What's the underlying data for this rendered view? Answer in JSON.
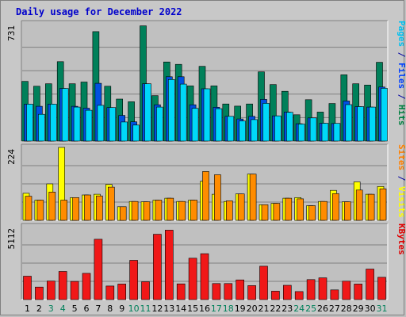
{
  "window": {
    "title": "Daily usage for December 2022"
  },
  "chart_data": [
    {
      "type": "bar",
      "panel": "pages-files-hits",
      "ymax_label": "731",
      "ylim": [
        0,
        731
      ],
      "legend": [
        {
          "text": "Pages",
          "color": "#00c0f0"
        },
        {
          "text": " / ",
          "color": "#0000a0"
        },
        {
          "text": "Files",
          "color": "#0040ff"
        },
        {
          "text": " / ",
          "color": "#0000a0"
        },
        {
          "text": "Hits",
          "color": "#008040"
        }
      ],
      "series": [
        {
          "name": "Hits",
          "color": "#00805a",
          "values": [
            372,
            342,
            357,
            495,
            357,
            368,
            682,
            342,
            262,
            245,
            718,
            283,
            493,
            478,
            344,
            466,
            344,
            231,
            218,
            231,
            431,
            352,
            310,
            164,
            258,
            181,
            234,
            413,
            357,
            349,
            491
          ]
        },
        {
          "name": "Files",
          "color": "#0050e0",
          "values": [
            230,
            217,
            230,
            328,
            217,
            205,
            360,
            209,
            160,
            120,
            357,
            226,
            401,
            401,
            226,
            326,
            211,
            154,
            138,
            154,
            260,
            157,
            181,
            108,
            144,
            111,
            109,
            250,
            215,
            212,
            337
          ]
        },
        {
          "name": "Pages",
          "color": "#00d8f8",
          "values": [
            230,
            167,
            230,
            328,
            212,
            192,
            223,
            209,
            119,
            100,
            357,
            212,
            384,
            355,
            204,
            326,
            202,
            154,
            125,
            134,
            235,
            157,
            180,
            106,
            144,
            111,
            110,
            227,
            215,
            212,
            329
          ]
        }
      ],
      "grid": true
    },
    {
      "type": "bar",
      "panel": "sites-visits",
      "ymax_label": "224",
      "ylim": [
        0,
        224
      ],
      "legend": [
        {
          "text": "Sites",
          "color": "#ff8000"
        },
        {
          "text": " / ",
          "color": "#0000a0"
        },
        {
          "text": "Visits",
          "color": "#ffff00"
        }
      ],
      "series": [
        {
          "name": "Visits",
          "color": "#ffff00",
          "values": [
            83,
            62,
            112,
            224,
            70,
            78,
            80,
            110,
            42,
            58,
            57,
            62,
            68,
            58,
            62,
            120,
            80,
            58,
            81,
            142,
            48,
            52,
            68,
            70,
            45,
            58,
            92,
            57,
            118,
            80,
            104
          ]
        },
        {
          "name": "Sites",
          "color": "#ff8c00",
          "values": [
            74,
            62,
            87,
            62,
            70,
            78,
            75,
            102,
            42,
            58,
            57,
            62,
            68,
            58,
            62,
            150,
            140,
            60,
            81,
            142,
            48,
            52,
            68,
            66,
            45,
            58,
            82,
            57,
            93,
            80,
            97
          ]
        }
      ],
      "grid": true
    },
    {
      "type": "bar",
      "panel": "kbytes",
      "ymax_label": "5112",
      "ylim": [
        0,
        5112
      ],
      "legend": [
        {
          "text": "KBytes",
          "color": "#e00000"
        }
      ],
      "series": [
        {
          "name": "KBytes",
          "color": "#f01818",
          "values": [
            1640,
            880,
            1300,
            1970,
            1270,
            1840,
            4230,
            950,
            1090,
            2750,
            1250,
            4580,
            4870,
            1100,
            2900,
            3220,
            1120,
            1120,
            1380,
            980,
            2340,
            590,
            1000,
            560,
            1400,
            1520,
            680,
            1290,
            1090,
            2140,
            1560
          ]
        }
      ],
      "grid": true
    }
  ],
  "x_axis": {
    "labels": [
      "1",
      "2",
      "3",
      "4",
      "5",
      "6",
      "7",
      "8",
      "9",
      "10",
      "11",
      "12",
      "13",
      "14",
      "15",
      "16",
      "17",
      "18",
      "19",
      "20",
      "21",
      "22",
      "23",
      "24",
      "25",
      "26",
      "27",
      "28",
      "29",
      "30",
      "31"
    ],
    "weekend_days": [
      3,
      4,
      10,
      11,
      17,
      18,
      24,
      25,
      31
    ],
    "weekday_color": "#000000",
    "weekend_color": "#00805a"
  }
}
